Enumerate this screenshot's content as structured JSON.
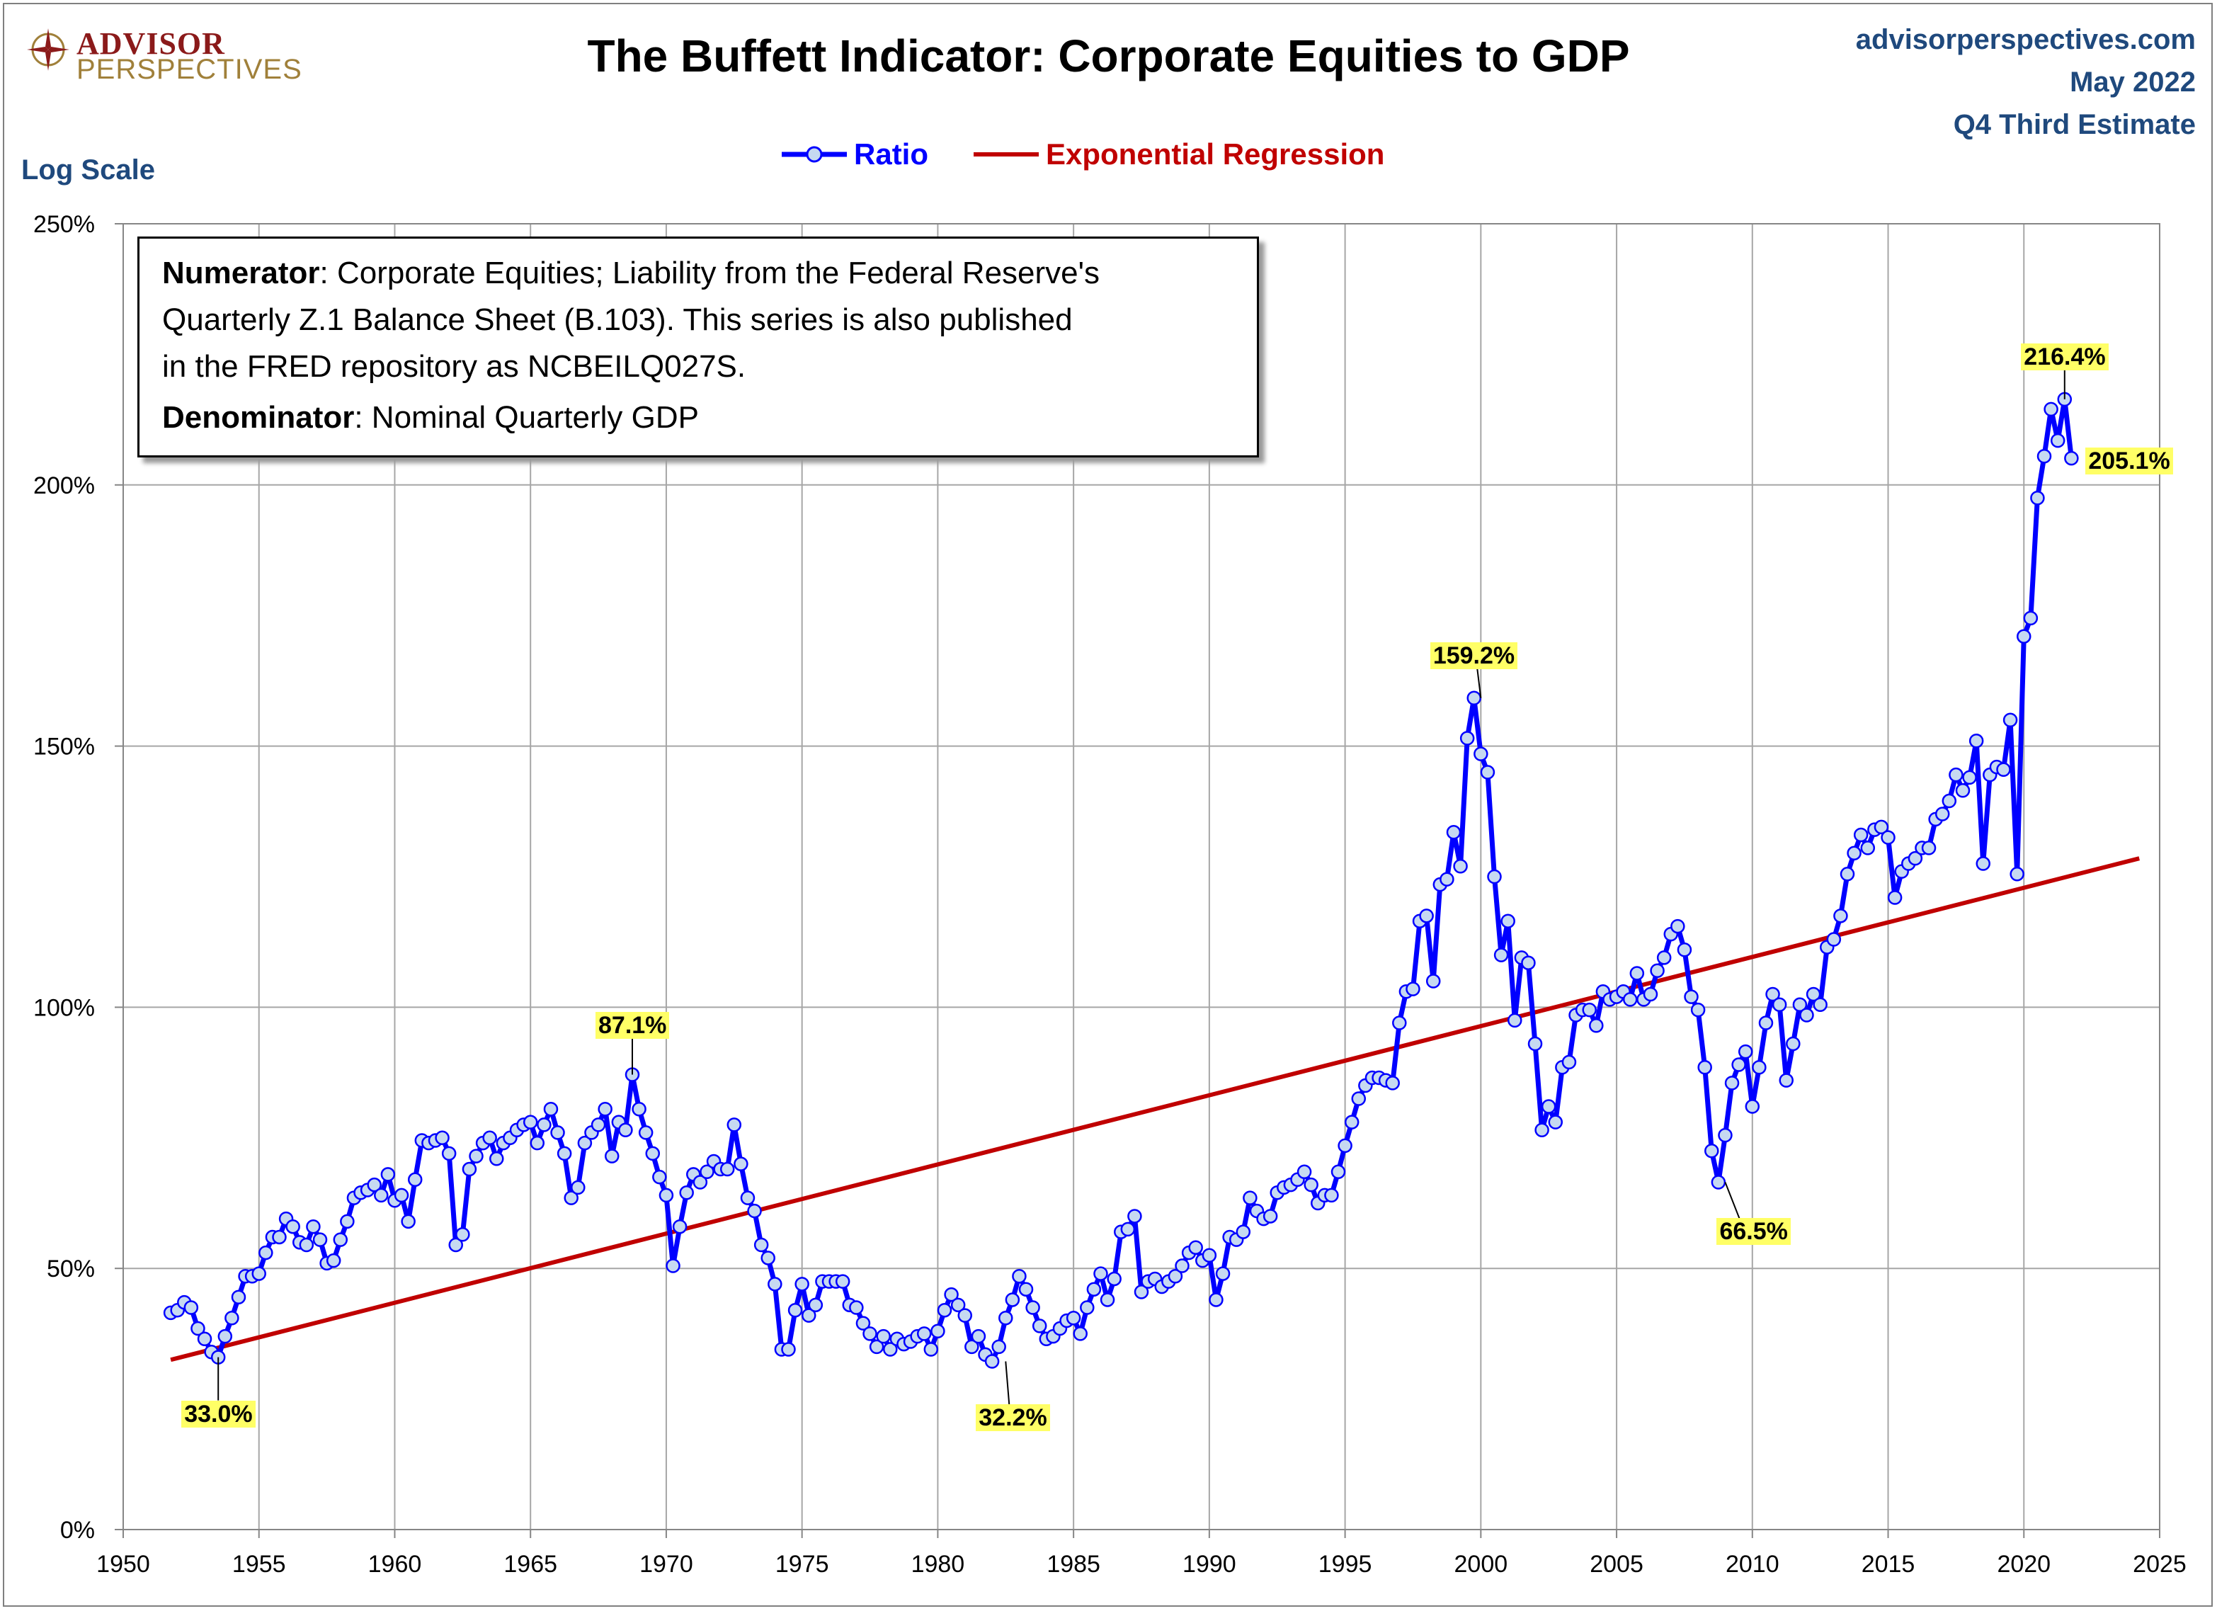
{
  "header": {
    "logo_line1": "ADVISOR",
    "logo_line2": "PERSPECTIVES",
    "title": "The Buffett Indicator: Corporate Equities to GDP",
    "site": "advisorperspectives.com",
    "date": "May 2022",
    "estimate": "Q4 Third Estimate",
    "scale_label": "Log Scale"
  },
  "legend": [
    {
      "label": "Ratio",
      "color": "#0000ff"
    },
    {
      "label": "Exponential Regression",
      "color": "#c00000"
    }
  ],
  "notes": {
    "numerator_label": "Numerator",
    "numerator_text": ": Corporate Equities; Liability from the Federal Reserve's Quarterly Z.1 Balance Sheet (B.103). This series is also published in the FRED repository as NCBEILQ027S.",
    "numerator_line1": ": Corporate Equities; Liability from the Federal Reserve's",
    "numerator_line2": "Quarterly Z.1 Balance Sheet (B.103). This series is also published",
    "numerator_line3": "in the FRED repository as NCBEILQ027S.",
    "denominator_label": "Denominator",
    "denominator_text": ": Nominal Quarterly GDP"
  },
  "chart_data": {
    "type": "line",
    "title": "The Buffett Indicator: Corporate Equities to GDP",
    "xlabel": "",
    "ylabel": "",
    "xlim": [
      1950,
      2025
    ],
    "ylim": [
      0,
      250
    ],
    "x_ticks": [
      1950,
      1955,
      1960,
      1965,
      1970,
      1975,
      1980,
      1985,
      1990,
      1995,
      2000,
      2005,
      2010,
      2015,
      2020,
      2025
    ],
    "y_ticks": [
      0,
      50,
      100,
      150,
      200,
      250
    ],
    "y_tick_labels": [
      "0%",
      "50%",
      "100%",
      "150%",
      "200%",
      "250%"
    ],
    "grid": true,
    "legend_position": "top-center",
    "series": [
      {
        "name": "Ratio",
        "color": "#0000ff",
        "marker": "circle",
        "x": [
          1951.75,
          1952.0,
          1952.25,
          1952.5,
          1952.75,
          1953.0,
          1953.25,
          1953.5,
          1953.75,
          1954.0,
          1954.25,
          1954.5,
          1954.75,
          1955.0,
          1955.25,
          1955.5,
          1955.75,
          1956.0,
          1956.25,
          1956.5,
          1956.75,
          1957.0,
          1957.25,
          1957.5,
          1957.75,
          1958.0,
          1958.25,
          1958.5,
          1958.75,
          1959.0,
          1959.25,
          1959.5,
          1959.75,
          1960.0,
          1960.25,
          1960.5,
          1960.75,
          1961.0,
          1961.25,
          1961.5,
          1961.75,
          1962.0,
          1962.25,
          1962.5,
          1962.75,
          1963.0,
          1963.25,
          1963.5,
          1963.75,
          1964.0,
          1964.25,
          1964.5,
          1964.75,
          1965.0,
          1965.25,
          1965.5,
          1965.75,
          1966.0,
          1966.25,
          1966.5,
          1966.75,
          1967.0,
          1967.25,
          1967.5,
          1967.75,
          1968.0,
          1968.25,
          1968.5,
          1968.75,
          1969.0,
          1969.25,
          1969.5,
          1969.75,
          1970.0,
          1970.25,
          1970.5,
          1970.75,
          1971.0,
          1971.25,
          1971.5,
          1971.75,
          1972.0,
          1972.25,
          1972.5,
          1972.75,
          1973.0,
          1973.25,
          1973.5,
          1973.75,
          1974.0,
          1974.25,
          1974.5,
          1974.75,
          1975.0,
          1975.25,
          1975.5,
          1975.75,
          1976.0,
          1976.25,
          1976.5,
          1976.75,
          1977.0,
          1977.25,
          1977.5,
          1977.75,
          1978.0,
          1978.25,
          1978.5,
          1978.75,
          1979.0,
          1979.25,
          1979.5,
          1979.75,
          1980.0,
          1980.25,
          1980.5,
          1980.75,
          1981.0,
          1981.25,
          1981.5,
          1981.75,
          1982.0,
          1982.25,
          1982.5,
          1982.75,
          1983.0,
          1983.25,
          1983.5,
          1983.75,
          1984.0,
          1984.25,
          1984.5,
          1984.75,
          1985.0,
          1985.25,
          1985.5,
          1985.75,
          1986.0,
          1986.25,
          1986.5,
          1986.75,
          1987.0,
          1987.25,
          1987.5,
          1987.75,
          1988.0,
          1988.25,
          1988.5,
          1988.75,
          1989.0,
          1989.25,
          1989.5,
          1989.75,
          1990.0,
          1990.25,
          1990.5,
          1990.75,
          1991.0,
          1991.25,
          1991.5,
          1991.75,
          1992.0,
          1992.25,
          1992.5,
          1992.75,
          1993.0,
          1993.25,
          1993.5,
          1993.75,
          1994.0,
          1994.25,
          1994.5,
          1994.75,
          1995.0,
          1995.25,
          1995.5,
          1995.75,
          1996.0,
          1996.25,
          1996.5,
          1996.75,
          1997.0,
          1997.25,
          1997.5,
          1997.75,
          1998.0,
          1998.25,
          1998.5,
          1998.75,
          1999.0,
          1999.25,
          1999.5,
          1999.75,
          2000.0,
          2000.25,
          2000.5,
          2000.75,
          2001.0,
          2001.25,
          2001.5,
          2001.75,
          2002.0,
          2002.25,
          2002.5,
          2002.75,
          2003.0,
          2003.25,
          2003.5,
          2003.75,
          2004.0,
          2004.25,
          2004.5,
          2004.75,
          2005.0,
          2005.25,
          2005.5,
          2005.75,
          2006.0,
          2006.25,
          2006.5,
          2006.75,
          2007.0,
          2007.25,
          2007.5,
          2007.75,
          2008.0,
          2008.25,
          2008.5,
          2008.75,
          2009.0,
          2009.25,
          2009.5,
          2009.75,
          2010.0,
          2010.25,
          2010.5,
          2010.75,
          2011.0,
          2011.25,
          2011.5,
          2011.75,
          2012.0,
          2012.25,
          2012.5,
          2012.75,
          2013.0,
          2013.25,
          2013.5,
          2013.75,
          2014.0,
          2014.25,
          2014.5,
          2014.75,
          2015.0,
          2015.25,
          2015.5,
          2015.75,
          2016.0,
          2016.25,
          2016.5,
          2016.75,
          2017.0,
          2017.25,
          2017.5,
          2017.75,
          2018.0,
          2018.25,
          2018.5,
          2018.75,
          2019.0,
          2019.25,
          2019.5,
          2019.75,
          2020.0,
          2020.25,
          2020.5,
          2020.75,
          2021.0,
          2021.25,
          2021.5,
          2021.75
        ],
        "values": [
          41.5,
          42.0,
          43.5,
          42.5,
          38.5,
          36.5,
          34.0,
          33.0,
          37.0,
          40.5,
          44.5,
          48.5,
          48.5,
          49.0,
          53.0,
          56.0,
          56.0,
          59.5,
          58.0,
          55.0,
          54.5,
          58.0,
          55.5,
          51.0,
          51.5,
          55.5,
          59.0,
          63.5,
          64.5,
          65.0,
          66.0,
          64.0,
          68.0,
          63.0,
          64.0,
          59.0,
          67.0,
          74.5,
          74.0,
          74.5,
          75.0,
          72.0,
          54.5,
          56.5,
          69.0,
          71.5,
          74.0,
          75.0,
          71.0,
          74.0,
          75.0,
          76.5,
          77.5,
          78.0,
          74.0,
          77.5,
          80.5,
          76.0,
          72.0,
          63.5,
          65.5,
          74.0,
          76.0,
          77.5,
          80.5,
          71.5,
          78.0,
          76.5,
          87.1,
          80.5,
          76.0,
          72.0,
          67.5,
          64.0,
          50.5,
          58.0,
          64.5,
          68.0,
          66.5,
          68.5,
          70.5,
          69.0,
          69.0,
          77.5,
          70.0,
          63.5,
          61.0,
          54.5,
          52.0,
          47.0,
          34.5,
          34.5,
          42.0,
          47.0,
          41.0,
          43.0,
          47.5,
          47.5,
          47.5,
          47.5,
          43.0,
          42.5,
          39.5,
          37.5,
          35.0,
          37.0,
          34.5,
          36.5,
          35.5,
          36.0,
          37.0,
          37.5,
          34.5,
          38.0,
          42.0,
          45.0,
          43.0,
          41.0,
          35.0,
          37.0,
          33.5,
          32.2,
          35.0,
          40.5,
          44.0,
          48.5,
          46.0,
          42.5,
          39.0,
          36.5,
          37.0,
          38.5,
          40.0,
          40.5,
          37.5,
          42.5,
          46.0,
          49.0,
          44.0,
          48.0,
          57.0,
          57.5,
          60.0,
          45.5,
          47.5,
          48.0,
          46.5,
          47.5,
          48.5,
          50.5,
          53.0,
          54.0,
          51.5,
          52.5,
          44.0,
          49.0,
          56.0,
          55.5,
          57.0,
          63.5,
          61.0,
          59.5,
          60.0,
          64.5,
          65.5,
          66.0,
          67.0,
          68.5,
          66.0,
          62.5,
          64.0,
          64.0,
          68.5,
          73.5,
          78.0,
          82.5,
          85.0,
          86.5,
          86.5,
          86.0,
          85.5,
          97.0,
          103.0,
          103.5,
          116.5,
          117.5,
          105.0,
          123.5,
          124.5,
          133.5,
          127.0,
          151.5,
          159.2,
          148.5,
          145.0,
          125.0,
          110.0,
          116.5,
          97.5,
          109.5,
          108.5,
          93.0,
          76.5,
          81.0,
          78.0,
          88.5,
          89.5,
          98.5,
          99.5,
          99.5,
          96.5,
          103.0,
          101.5,
          102.0,
          103.0,
          101.5,
          106.5,
          101.5,
          102.5,
          107.0,
          109.5,
          114.0,
          115.5,
          111.0,
          102.0,
          99.5,
          88.5,
          72.5,
          66.5,
          75.5,
          85.5,
          89.0,
          91.5,
          81.0,
          88.5,
          97.0,
          102.5,
          100.5,
          86.0,
          93.0,
          100.5,
          98.5,
          102.5,
          100.5,
          111.5,
          113.0,
          117.5,
          125.5,
          129.5,
          133.0,
          130.5,
          134.0,
          134.5,
          132.5,
          121.0,
          126.0,
          127.5,
          128.5,
          130.5,
          130.5,
          136.0,
          137.0,
          139.5,
          144.5,
          141.5,
          144.0,
          151.0,
          127.5,
          144.5,
          146.0,
          145.5,
          155.0,
          125.5,
          171.0,
          174.5,
          197.5,
          205.5,
          214.5,
          208.5,
          216.4,
          205.1
        ]
      },
      {
        "name": "Exponential Regression",
        "color": "#c00000",
        "x": [
          1951.75,
          2024.25
        ],
        "values": [
          32.5,
          128.5
        ]
      }
    ],
    "annotations": [
      {
        "label": "33.0%",
        "x": 1953.5,
        "y": 33.0
      },
      {
        "label": "87.1%",
        "x": 1968.75,
        "y": 87.1
      },
      {
        "label": "32.2%",
        "x": 1982.5,
        "y": 32.2
      },
      {
        "label": "159.2%",
        "x": 2000.0,
        "y": 159.2
      },
      {
        "label": "66.5%",
        "x": 2009.0,
        "y": 66.5
      },
      {
        "label": "216.4%",
        "x": 2021.5,
        "y": 216.4
      },
      {
        "label": "205.1%",
        "x": 2021.75,
        "y": 205.1
      }
    ]
  }
}
